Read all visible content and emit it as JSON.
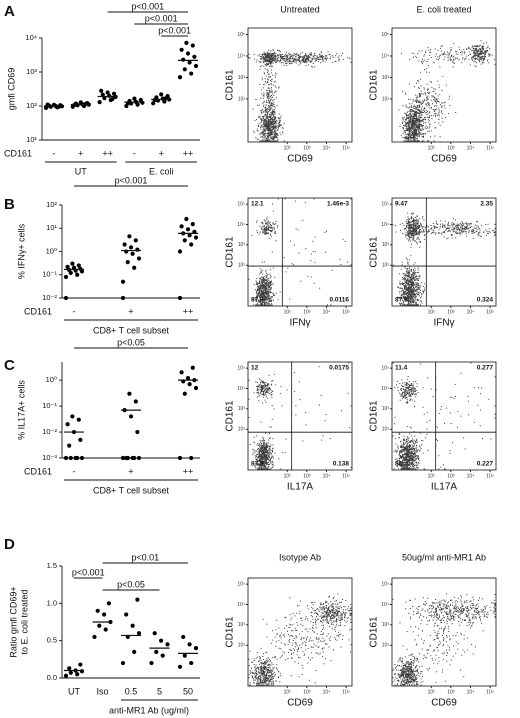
{
  "chart_data": [
    {
      "type": "dot",
      "panel": "A",
      "ylabel": [
        "gmfi CD69"
      ],
      "log_y": true,
      "ylim": [
        10,
        10000
      ],
      "yticks": [
        {
          "value": 10,
          "label": "10¹"
        },
        {
          "value": 100,
          "label": "10²"
        },
        {
          "value": 1000,
          "label": "10³"
        },
        {
          "value": 10000,
          "label": "10⁴"
        }
      ],
      "categories": [
        "-",
        "+",
        "++",
        "-",
        "+",
        "++"
      ],
      "row_label": "CD161",
      "groups": [
        "UT",
        "E. coli"
      ],
      "values": [
        [
          88,
          92,
          95,
          98,
          100,
          102,
          105,
          108,
          110,
          96
        ],
        [
          95,
          100,
          105,
          110,
          112,
          118,
          122,
          128,
          108,
          115
        ],
        [
          130,
          150,
          170,
          185,
          200,
          215,
          230,
          250,
          280,
          160
        ],
        [
          100,
          110,
          118,
          125,
          132,
          140,
          150,
          165,
          122
        ],
        [
          120,
          135,
          145,
          155,
          165,
          180,
          195,
          220,
          150,
          170
        ],
        [
          700,
          900,
          1200,
          1500,
          1900,
          2300,
          2800,
          3500,
          4500,
          6000,
          7200
        ]
      ],
      "medians": [
        100,
        110,
        190,
        130,
        155,
        2200
      ],
      "color": "#000000",
      "comparisons": [
        {
          "label": "p<0.001",
          "from": 2,
          "to": 5
        },
        {
          "label": "p<0.001",
          "from": 3,
          "to": 5
        },
        {
          "label": "p<0.001",
          "from": 4,
          "to": 5
        }
      ]
    },
    {
      "type": "flow",
      "title": "Untreated",
      "xlabel": "CD69",
      "ylabel": "CD161",
      "log_x": true,
      "log_y": true,
      "xlim": [
        1,
        200000
      ],
      "ylim": [
        1,
        200000
      ],
      "xticks": [
        {
          "value": 100,
          "label": "10²"
        },
        {
          "value": 1000,
          "label": "10³"
        },
        {
          "value": 10000,
          "label": "10⁴"
        },
        {
          "value": 100000,
          "label": "10⁵"
        }
      ],
      "yticks": [
        {
          "value": 100,
          "label": "10²"
        },
        {
          "value": 1000,
          "label": "10³"
        },
        {
          "value": 10000,
          "label": "10⁴"
        },
        {
          "value": 100000,
          "label": "10⁵"
        }
      ]
    },
    {
      "type": "flow",
      "title": "E. coli treated",
      "xlabel": "CD69",
      "ylabel": "CD161",
      "log_x": true,
      "log_y": true,
      "xlim": [
        1,
        200000
      ],
      "ylim": [
        1,
        200000
      ],
      "xticks": [
        {
          "value": 100,
          "label": "10²"
        },
        {
          "value": 1000,
          "label": "10³"
        },
        {
          "value": 10000,
          "label": "10⁴"
        },
        {
          "value": 100000,
          "label": "10⁵"
        }
      ],
      "yticks": [
        {
          "value": 100,
          "label": "10²"
        },
        {
          "value": 1000,
          "label": "10³"
        },
        {
          "value": 10000,
          "label": "10⁴"
        },
        {
          "value": 100000,
          "label": "10⁵"
        }
      ]
    },
    {
      "type": "dot",
      "panel": "B",
      "ylabel": [
        "% IFNγ+ cells"
      ],
      "log_y": true,
      "ylim": [
        0.01,
        100
      ],
      "yticks": [
        {
          "value": 0.01,
          "label": "10⁻²"
        },
        {
          "value": 0.1,
          "label": "10⁻¹"
        },
        {
          "value": 1,
          "label": "10⁰"
        },
        {
          "value": 10,
          "label": "10¹"
        },
        {
          "value": 100,
          "label": "10²"
        }
      ],
      "categories": [
        "-",
        "+",
        "++"
      ],
      "row_label": "CD161",
      "xlabel": "CD8+ T cell subset",
      "values": [
        [
          0.08,
          0.1,
          0.12,
          0.14,
          0.15,
          0.16,
          0.18,
          0.2,
          0.22,
          0.25,
          0.3,
          0.01
        ],
        [
          0.05,
          0.2,
          0.35,
          0.5,
          0.8,
          1,
          1.2,
          1.5,
          2,
          3,
          4.5,
          0.01
        ],
        [
          1,
          2,
          3,
          4,
          5,
          6,
          7,
          9,
          12,
          15,
          25,
          0.01
        ]
      ],
      "medians": [
        0.17,
        1.1,
        6
      ],
      "color": "#000000",
      "comparisons": [
        {
          "label": "p<0.001",
          "from": 0,
          "to": 2
        }
      ]
    },
    {
      "type": "flow",
      "xlabel": "IFNγ",
      "ylabel": "CD161",
      "log_x": true,
      "log_y": true,
      "xlim": [
        1,
        200000
      ],
      "ylim": [
        1,
        200000
      ],
      "xticks": [
        {
          "value": 100,
          "label": "10²"
        },
        {
          "value": 1000,
          "label": "10³"
        },
        {
          "value": 10000,
          "label": "10⁴"
        },
        {
          "value": 100000,
          "label": "10⁵"
        }
      ],
      "yticks": [
        {
          "value": 100,
          "label": "10²"
        },
        {
          "value": 1000,
          "label": "10³"
        },
        {
          "value": 10000,
          "label": "10⁴"
        },
        {
          "value": 100000,
          "label": "10⁵"
        }
      ],
      "quadrants": [
        12.1,
        0.00146,
        87.9,
        0.0116
      ],
      "value_labels": [
        "12.1",
        "1.46e-3",
        "87.9",
        "0.0116"
      ]
    },
    {
      "type": "flow",
      "xlabel": "IFNγ",
      "ylabel": "CD161",
      "log_x": true,
      "log_y": true,
      "xlim": [
        1,
        200000
      ],
      "ylim": [
        1,
        200000
      ],
      "xticks": [
        {
          "value": 100,
          "label": "10²"
        },
        {
          "value": 1000,
          "label": "10³"
        },
        {
          "value": 10000,
          "label": "10⁴"
        },
        {
          "value": 100000,
          "label": "10⁵"
        }
      ],
      "yticks": [
        {
          "value": 100,
          "label": "10²"
        },
        {
          "value": 1000,
          "label": "10³"
        },
        {
          "value": 10000,
          "label": "10⁴"
        },
        {
          "value": 100000,
          "label": "10⁵"
        }
      ],
      "quadrants": [
        9.47,
        2.35,
        87.9,
        0.324
      ]
    },
    {
      "type": "dot",
      "panel": "C",
      "ylabel": [
        "% IL17A+ cells"
      ],
      "log_y": true,
      "ylim": [
        0.001,
        5
      ],
      "yticks": [
        {
          "value": 0.001,
          "label": "10⁻³"
        },
        {
          "value": 0.01,
          "label": "10⁻²"
        },
        {
          "value": 0.1,
          "label": "10⁻¹"
        },
        {
          "value": 1,
          "label": "10⁰"
        }
      ],
      "categories": [
        "-",
        "+",
        "++"
      ],
      "row_label": "CD161",
      "xlabel": "CD8+ T cell subset",
      "values": [
        [
          0.001,
          0.001,
          0.001,
          0.001,
          0.001,
          0.003,
          0.005,
          0.01,
          0.02,
          0.03,
          0.04
        ],
        [
          0.001,
          0.001,
          0.001,
          0.001,
          0.001,
          0.001,
          0.01,
          0.04,
          0.07,
          0.15,
          0.3
        ],
        [
          0.001,
          0.001,
          0.3,
          0.5,
          0.7,
          0.9,
          1,
          1.2,
          2,
          3
        ]
      ],
      "medians": [
        0.01,
        0.07,
        1
      ],
      "color": "#000000",
      "comparisons": [
        {
          "label": "p<0.05",
          "from": 0,
          "to": 2
        }
      ]
    },
    {
      "type": "flow",
      "xlabel": "IL17A",
      "ylabel": "CD161",
      "log_x": true,
      "log_y": true,
      "xlim": [
        1,
        200000
      ],
      "ylim": [
        1,
        200000
      ],
      "xticks": [
        {
          "value": 100,
          "label": "10²"
        },
        {
          "value": 1000,
          "label": "10³"
        },
        {
          "value": 10000,
          "label": "10⁴"
        },
        {
          "value": 100000,
          "label": "10⁵"
        }
      ],
      "yticks": [
        {
          "value": 100,
          "label": "10²"
        },
        {
          "value": 1000,
          "label": "10³"
        },
        {
          "value": 10000,
          "label": "10⁴"
        },
        {
          "value": 100000,
          "label": "10⁵"
        }
      ],
      "quadrants": [
        12,
        0.0175,
        87.8,
        0.138
      ]
    },
    {
      "type": "flow",
      "xlabel": "IL17A",
      "ylabel": "CD161",
      "log_x": true,
      "log_y": true,
      "xlim": [
        1,
        200000
      ],
      "ylim": [
        1,
        200000
      ],
      "xticks": [
        {
          "value": 100,
          "label": "10²"
        },
        {
          "value": 1000,
          "label": "10³"
        },
        {
          "value": 10000,
          "label": "10⁴"
        },
        {
          "value": 100000,
          "label": "10⁵"
        }
      ],
      "yticks": [
        {
          "value": 100,
          "label": "10²"
        },
        {
          "value": 1000,
          "label": "10³"
        },
        {
          "value": 10000,
          "label": "10⁴"
        },
        {
          "value": 100000,
          "label": "10⁵"
        }
      ],
      "quadrants": [
        11.4,
        0.277,
        88,
        0.227
      ]
    },
    {
      "type": "dot",
      "panel": "D",
      "ylabel": [
        "Ratio gmfi CD69+",
        "to E. coli treated"
      ],
      "log_y": false,
      "ylim": [
        0,
        1.5
      ],
      "yticks": [
        {
          "value": 0,
          "label": "0.0"
        },
        0.5,
        {
          "value": 1,
          "label": "1.0"
        },
        1.5
      ],
      "categories": [
        "UT",
        "Iso",
        "0.5",
        "5",
        "50"
      ],
      "xlabel": "anti-MR1 Ab (ug/ml)",
      "values": [
        [
          0.03,
          0.05,
          0.07,
          0.09,
          0.1,
          0.13,
          0.18
        ],
        [
          0.55,
          0.65,
          0.7,
          0.75,
          0.85,
          0.9,
          1.0
        ],
        [
          0.2,
          0.35,
          0.55,
          0.6,
          0.7,
          0.85,
          1.05
        ],
        [
          0.2,
          0.3,
          0.35,
          0.45,
          0.5,
          0.6
        ],
        [
          0.15,
          0.2,
          0.3,
          0.4,
          0.45,
          0.55
        ]
      ],
      "medians": [
        0.1,
        0.75,
        0.57,
        0.4,
        0.33
      ],
      "color": "#000000",
      "comparisons": [
        {
          "label": "p<0.001",
          "from": 0,
          "to": 1
        },
        {
          "label": "p<0.05",
          "from": 1,
          "to": 3
        },
        {
          "label": "p<0.01",
          "from": 1,
          "to": 4
        }
      ]
    },
    {
      "type": "flow",
      "title": "Isotype Ab",
      "xlabel": "CD69",
      "ylabel": "CD161",
      "log_x": true,
      "log_y": true,
      "xlim": [
        1,
        200000
      ],
      "ylim": [
        1,
        200000
      ],
      "xticks": [
        {
          "value": 100,
          "label": "10²"
        },
        {
          "value": 1000,
          "label": "10³"
        },
        {
          "value": 10000,
          "label": "10⁴"
        },
        {
          "value": 100000,
          "label": "10⁵"
        }
      ],
      "yticks": [
        {
          "value": 100,
          "label": "10²"
        },
        {
          "value": 1000,
          "label": "10³"
        },
        {
          "value": 10000,
          "label": "10⁴"
        },
        {
          "value": 100000,
          "label": "10⁵"
        }
      ]
    },
    {
      "type": "flow",
      "title": "50ug/ml anti-MR1 Ab",
      "xlabel": "CD69",
      "ylabel": "CD161",
      "log_x": true,
      "log_y": true,
      "xlim": [
        1,
        200000
      ],
      "ylim": [
        1,
        200000
      ],
      "xticks": [
        {
          "value": 100,
          "label": "10²"
        },
        {
          "value": 1000,
          "label": "10³"
        },
        {
          "value": 10000,
          "label": "10⁴"
        },
        {
          "value": 100000,
          "label": "10⁵"
        }
      ],
      "yticks": [
        {
          "value": 100,
          "label": "10²"
        },
        {
          "value": 1000,
          "label": "10³"
        },
        {
          "value": 10000,
          "label": "10⁴"
        },
        {
          "value": 100000,
          "label": "10⁵"
        }
      ]
    }
  ]
}
